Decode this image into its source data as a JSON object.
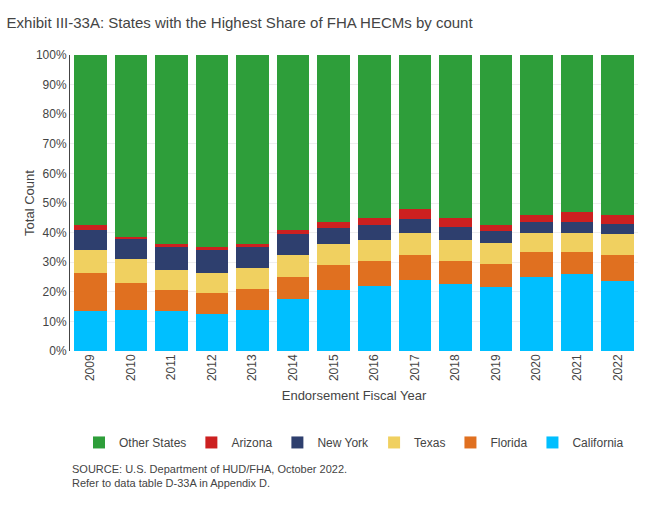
{
  "chart_data": {
    "type": "bar",
    "stacked": true,
    "title": "Exhibit III-33A: States with the Highest Share of FHA HECMs by count",
    "x_label": "Endorsement Fiscal Year",
    "y_label": "Total Count",
    "categories": [
      "2009",
      "2010",
      "2011",
      "2012",
      "2013",
      "2014",
      "2015",
      "2016",
      "2017",
      "2018",
      "2019",
      "2020",
      "2021",
      "2022"
    ],
    "series": [
      {
        "name": "California",
        "color": "#00BFFF",
        "values": [
          13.5,
          14.0,
          13.5,
          12.5,
          14.0,
          17.5,
          20.5,
          22.0,
          24.0,
          22.5,
          21.5,
          25.0,
          26.0,
          23.5
        ]
      },
      {
        "name": "Florida",
        "color": "#E07020",
        "values": [
          13.0,
          9.0,
          7.0,
          7.0,
          7.0,
          7.5,
          8.5,
          8.5,
          8.5,
          8.0,
          8.0,
          8.5,
          7.5,
          9.0
        ]
      },
      {
        "name": "Texas",
        "color": "#F0D060",
        "values": [
          7.5,
          8.0,
          7.0,
          7.0,
          7.0,
          7.5,
          7.0,
          7.0,
          7.5,
          7.0,
          7.0,
          6.5,
          6.5,
          7.0
        ]
      },
      {
        "name": "New York",
        "color": "#2E3F6E",
        "values": [
          7.0,
          7.0,
          7.5,
          7.5,
          7.0,
          7.0,
          5.5,
          5.0,
          4.5,
          4.5,
          4.0,
          3.5,
          3.5,
          3.5
        ]
      },
      {
        "name": "Arizona",
        "color": "#CC2020",
        "values": [
          1.5,
          0.5,
          1.0,
          1.0,
          1.0,
          1.5,
          2.0,
          2.5,
          3.5,
          3.0,
          2.0,
          2.5,
          3.5,
          3.0
        ]
      },
      {
        "name": "Other States",
        "color": "#2E9E3A",
        "values": [
          57.5,
          61.5,
          64.0,
          65.0,
          64.0,
          59.0,
          56.5,
          55.0,
          52.0,
          55.0,
          57.5,
          54.0,
          53.0,
          54.0
        ]
      }
    ],
    "ylim": [
      0,
      100
    ],
    "yticks": [
      {
        "value": 0,
        "label": "0%"
      },
      {
        "value": 10,
        "label": "10%"
      },
      {
        "value": 20,
        "label": "20%"
      },
      {
        "value": 30,
        "label": "30%"
      },
      {
        "value": 40,
        "label": "40%"
      },
      {
        "value": 50,
        "label": "50%"
      },
      {
        "value": 60,
        "label": "60%"
      },
      {
        "value": 70,
        "label": "70%"
      },
      {
        "value": 80,
        "label": "80%"
      },
      {
        "value": 90,
        "label": "90%"
      },
      {
        "value": 100,
        "label": "100%"
      }
    ],
    "grid": true,
    "legend": "bottom",
    "annotations": [
      "SOURCE: U.S. Department of HUD/FHA, October 2022.\nRefer to data table D-33A in Appendix D."
    ]
  }
}
